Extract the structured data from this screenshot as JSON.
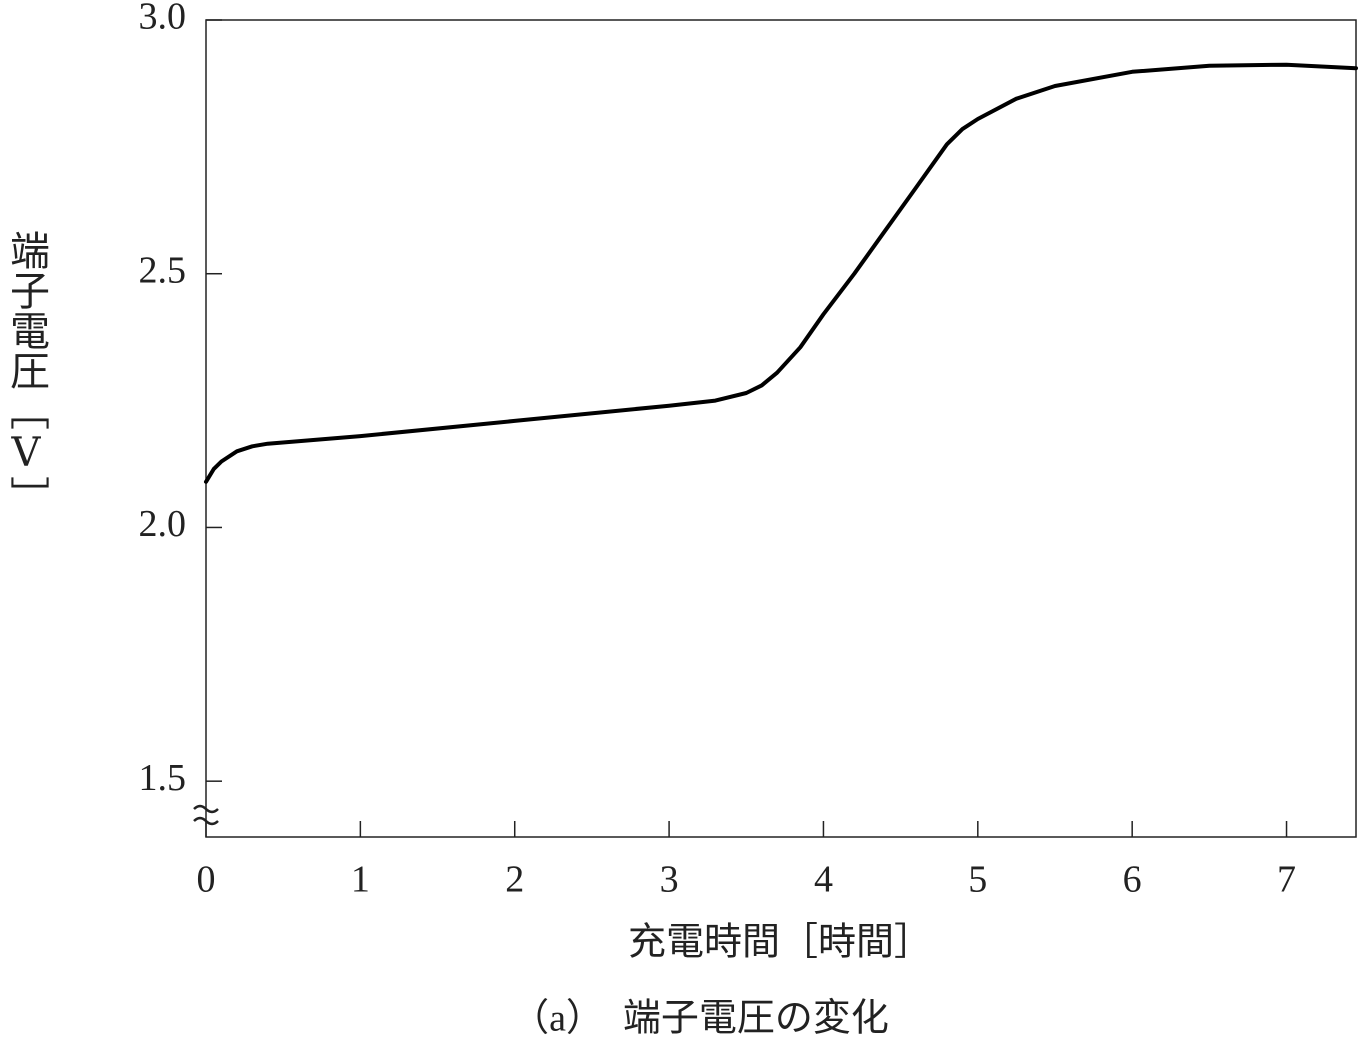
{
  "chart_data": {
    "type": "line",
    "xlabel": "充電時間［時間］",
    "ylabel": "端子電圧［V］",
    "caption": "（a）　端子電圧の変化",
    "x": [
      0,
      0.05,
      0.1,
      0.2,
      0.3,
      0.4,
      1,
      2,
      3,
      3.3,
      3.5,
      3.6,
      3.7,
      3.85,
      4.0,
      4.2,
      4.4,
      4.6,
      4.8,
      4.9,
      5.0,
      5.25,
      5.5,
      6.0,
      6.5,
      7.0,
      7.45
    ],
    "values": [
      2.09,
      2.115,
      2.13,
      2.15,
      2.16,
      2.165,
      2.18,
      2.21,
      2.24,
      2.25,
      2.265,
      2.28,
      2.305,
      2.355,
      2.42,
      2.5,
      2.585,
      2.67,
      2.755,
      2.785,
      2.805,
      2.845,
      2.87,
      2.898,
      2.91,
      2.912,
      2.905
    ],
    "color": "#000000",
    "xlim": [
      0,
      7.45
    ],
    "ylim": [
      1.39,
      3.0
    ],
    "xticks": [
      0,
      1,
      2,
      3,
      4,
      5,
      6,
      7
    ],
    "yticks": [
      1.5,
      {
        "value": 2,
        "label": "2.0"
      },
      2.5,
      {
        "value": 3,
        "label": "3.0"
      }
    ]
  }
}
